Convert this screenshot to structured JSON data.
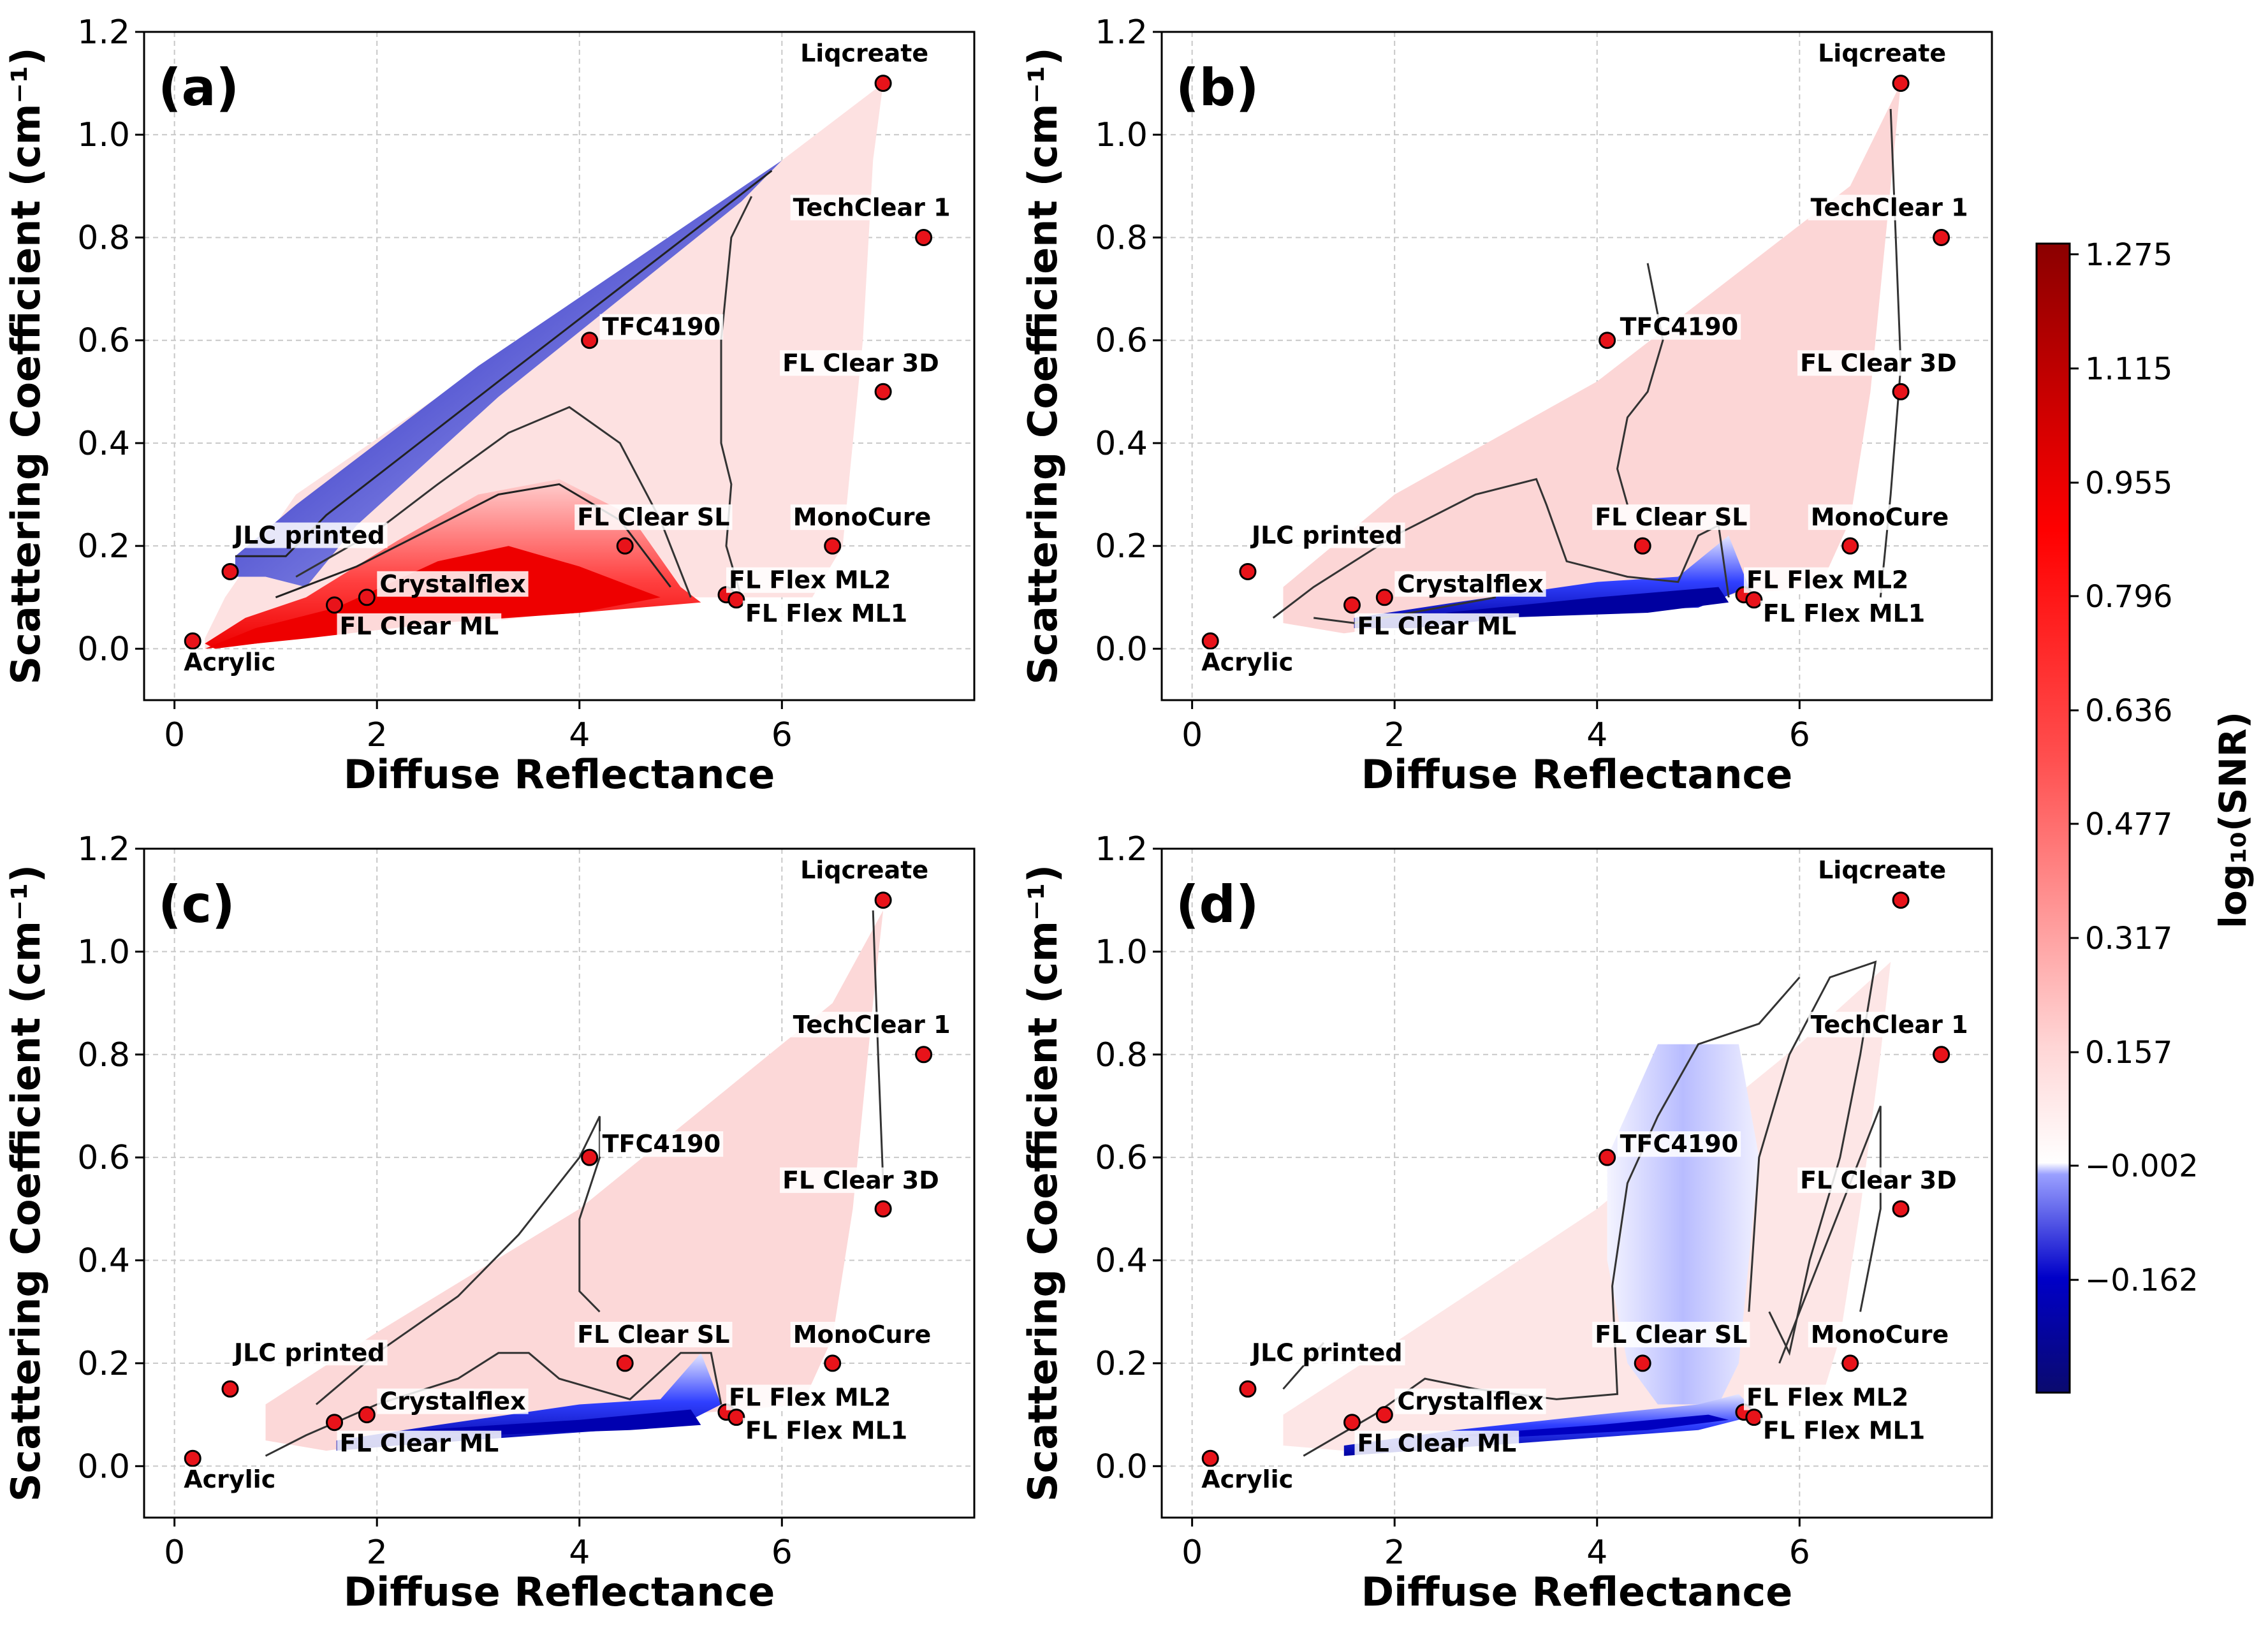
{
  "figure": {
    "colors": {
      "high": "#a00000",
      "mid_red": "#ff2a2a",
      "neutral": "#ffffff",
      "low": "#0000c8",
      "lowest": "#0a0a6e",
      "point_fill": "#e8131a"
    }
  },
  "chart_data": [
    {
      "type": "scatter",
      "panel": "(a)",
      "title": "",
      "xlabel": "Diffuse Reflectance",
      "ylabel": "Scattering Coefficient (cm⁻¹)",
      "xlim": [
        -0.3,
        7.9
      ],
      "ylim": [
        -0.1,
        1.2
      ],
      "xticks": [
        "0",
        "2",
        "4",
        "6"
      ],
      "yticks": [
        "0.0",
        "0.2",
        "0.4",
        "0.6",
        "0.8",
        "1.0",
        "1.2"
      ],
      "grid": true,
      "points": [
        {
          "name": "Liqcreate",
          "x": 7.0,
          "y": 1.1
        },
        {
          "name": "TechClear 1",
          "x": 7.4,
          "y": 0.8
        },
        {
          "name": "TFC4190",
          "x": 4.1,
          "y": 0.6
        },
        {
          "name": "FL Clear 3D",
          "x": 7.0,
          "y": 0.5
        },
        {
          "name": "FL Clear SL",
          "x": 4.45,
          "y": 0.2
        },
        {
          "name": "MonoCure",
          "x": 6.5,
          "y": 0.2
        },
        {
          "name": "JLC printed",
          "x": 0.55,
          "y": 0.15
        },
        {
          "name": "FL Flex ML2",
          "x": 5.45,
          "y": 0.105
        },
        {
          "name": "FL Flex ML1",
          "x": 5.55,
          "y": 0.095
        },
        {
          "name": "Crystalflex",
          "x": 1.9,
          "y": 0.1
        },
        {
          "name": "FL Clear ML",
          "x": 1.58,
          "y": 0.085
        },
        {
          "name": "Acrylic",
          "x": 0.18,
          "y": 0.015
        }
      ]
    },
    {
      "type": "scatter",
      "panel": "(b)",
      "title": "",
      "xlabel": "Diffuse Reflectance",
      "ylabel": "Scattering Coefficient (cm⁻¹)",
      "xlim": [
        -0.3,
        7.9
      ],
      "ylim": [
        -0.1,
        1.2
      ],
      "xticks": [
        "0",
        "2",
        "4",
        "6"
      ],
      "yticks": [
        "0.0",
        "0.2",
        "0.4",
        "0.6",
        "0.8",
        "1.0",
        "1.2"
      ],
      "grid": true,
      "points": [
        {
          "name": "Liqcreate",
          "x": 7.0,
          "y": 1.1
        },
        {
          "name": "TechClear 1",
          "x": 7.4,
          "y": 0.8
        },
        {
          "name": "TFC4190",
          "x": 4.1,
          "y": 0.6
        },
        {
          "name": "FL Clear 3D",
          "x": 7.0,
          "y": 0.5
        },
        {
          "name": "FL Clear SL",
          "x": 4.45,
          "y": 0.2
        },
        {
          "name": "MonoCure",
          "x": 6.5,
          "y": 0.2
        },
        {
          "name": "JLC printed",
          "x": 0.55,
          "y": 0.15
        },
        {
          "name": "FL Flex ML2",
          "x": 5.45,
          "y": 0.105
        },
        {
          "name": "FL Flex ML1",
          "x": 5.55,
          "y": 0.095
        },
        {
          "name": "Crystalflex",
          "x": 1.9,
          "y": 0.1
        },
        {
          "name": "FL Clear ML",
          "x": 1.58,
          "y": 0.085
        },
        {
          "name": "Acrylic",
          "x": 0.18,
          "y": 0.015
        }
      ]
    },
    {
      "type": "scatter",
      "panel": "(c)",
      "title": "",
      "xlabel": "Diffuse Reflectance",
      "ylabel": "Scattering Coefficient (cm⁻¹)",
      "xlim": [
        -0.3,
        7.9
      ],
      "ylim": [
        -0.1,
        1.2
      ],
      "xticks": [
        "0",
        "2",
        "4",
        "6"
      ],
      "yticks": [
        "0.0",
        "0.2",
        "0.4",
        "0.6",
        "0.8",
        "1.0",
        "1.2"
      ],
      "grid": true,
      "points": [
        {
          "name": "Liqcreate",
          "x": 7.0,
          "y": 1.1
        },
        {
          "name": "TechClear 1",
          "x": 7.4,
          "y": 0.8
        },
        {
          "name": "TFC4190",
          "x": 4.1,
          "y": 0.6
        },
        {
          "name": "FL Clear 3D",
          "x": 7.0,
          "y": 0.5
        },
        {
          "name": "FL Clear SL",
          "x": 4.45,
          "y": 0.2
        },
        {
          "name": "MonoCure",
          "x": 6.5,
          "y": 0.2
        },
        {
          "name": "JLC printed",
          "x": 0.55,
          "y": 0.15
        },
        {
          "name": "FL Flex ML2",
          "x": 5.45,
          "y": 0.105
        },
        {
          "name": "FL Flex ML1",
          "x": 5.55,
          "y": 0.095
        },
        {
          "name": "Crystalflex",
          "x": 1.9,
          "y": 0.1
        },
        {
          "name": "FL Clear ML",
          "x": 1.58,
          "y": 0.085
        },
        {
          "name": "Acrylic",
          "x": 0.18,
          "y": 0.015
        }
      ]
    },
    {
      "type": "scatter",
      "panel": "(d)",
      "title": "",
      "xlabel": "Diffuse Reflectance",
      "ylabel": "Scattering Coefficient (cm⁻¹)",
      "xlim": [
        -0.3,
        7.9
      ],
      "ylim": [
        -0.1,
        1.2
      ],
      "xticks": [
        "0",
        "2",
        "4",
        "6"
      ],
      "yticks": [
        "0.0",
        "0.2",
        "0.4",
        "0.6",
        "0.8",
        "1.0",
        "1.2"
      ],
      "grid": true,
      "points": [
        {
          "name": "Liqcreate",
          "x": 7.0,
          "y": 1.1
        },
        {
          "name": "TechClear 1",
          "x": 7.4,
          "y": 0.8
        },
        {
          "name": "TFC4190",
          "x": 4.1,
          "y": 0.6
        },
        {
          "name": "FL Clear 3D",
          "x": 7.0,
          "y": 0.5
        },
        {
          "name": "FL Clear SL",
          "x": 4.45,
          "y": 0.2
        },
        {
          "name": "MonoCure",
          "x": 6.5,
          "y": 0.2
        },
        {
          "name": "JLC printed",
          "x": 0.55,
          "y": 0.15
        },
        {
          "name": "FL Flex ML2",
          "x": 5.45,
          "y": 0.105
        },
        {
          "name": "FL Flex ML1",
          "x": 5.55,
          "y": 0.095
        },
        {
          "name": "Crystalflex",
          "x": 1.9,
          "y": 0.1
        },
        {
          "name": "FL Clear ML",
          "x": 1.58,
          "y": 0.085
        },
        {
          "name": "Acrylic",
          "x": 0.18,
          "y": 0.015
        }
      ]
    }
  ],
  "colorbar": {
    "label": "log₁₀(SNR)",
    "ticks": [
      "1.275",
      "1.115",
      "0.955",
      "0.796",
      "0.636",
      "0.477",
      "0.317",
      "0.157",
      "−0.002",
      "−0.162"
    ],
    "tick_values": [
      1.275,
      1.115,
      0.955,
      0.796,
      0.636,
      0.477,
      0.317,
      0.157,
      -0.002,
      -0.162
    ],
    "range": [
      -0.32,
      1.29
    ]
  }
}
